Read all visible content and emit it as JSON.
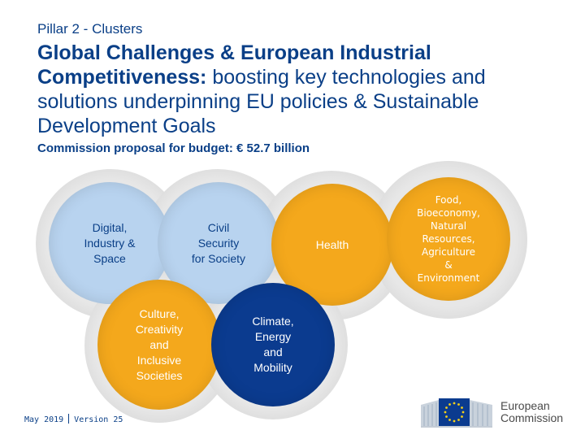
{
  "subtitle": "Pillar 2 - Clusters",
  "title": {
    "bold": "Global Challenges & European Industrial Competitiveness:",
    "rest": " boosting key technologies and solutions underpinning EU policies & Sustainable Development Goals"
  },
  "budget": "Commission proposal for budget: € 52.7 billion",
  "clusters": [
    {
      "label": "Digital,\nIndustry &\nSpace",
      "color": "#b8d3ef",
      "text_color": "#0a3f87"
    },
    {
      "label": "Civil\nSecurity\nfor Society",
      "color": "#b8d3ef",
      "text_color": "#0a3f87"
    },
    {
      "label": "Health",
      "color": "#f4a81c",
      "text_color": "#ffffff"
    },
    {
      "label": "Food,\nBioeconomy,\nNatural\nResources,\nAgriculture\n&\nEnvironment",
      "color": "#f4a81c",
      "text_color": "#ffffff"
    },
    {
      "label": "Culture,\nCreativity\nand\nInclusive\nSocieties",
      "color": "#f4a81c",
      "text_color": "#ffffff"
    },
    {
      "label": "Climate,\nEnergy\nand\nMobility",
      "color": "#0b3b8f",
      "text_color": "#ffffff"
    }
  ],
  "footer": {
    "date": "May 2019",
    "version": "Version 25"
  },
  "logo": {
    "line1": "European",
    "line2": "Commission"
  }
}
